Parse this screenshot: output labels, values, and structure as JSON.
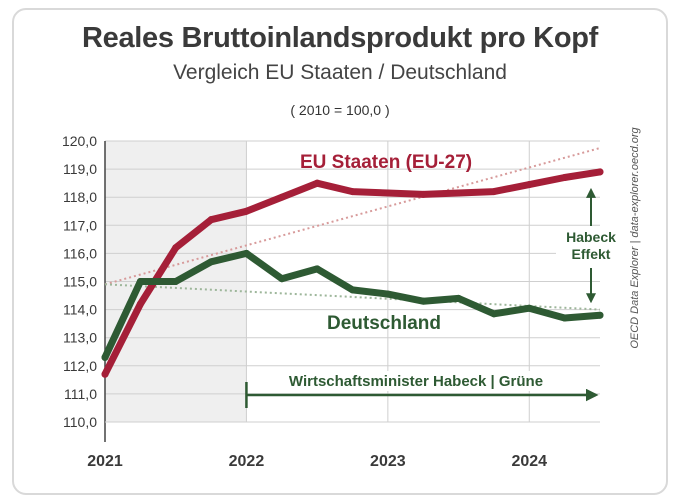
{
  "header": {
    "title": "Reales Bruttoinlandsprodukt pro Kopf",
    "subtitle": "Vergleich EU Staaten / Deutschland",
    "baseline_note": "( 2010 = 100,0 )"
  },
  "source": "OECD Data Explorer | data-explorer.oecd.org",
  "colors": {
    "eu": "#a51f38",
    "de": "#2e5a33",
    "eu_trend": "#d79a9a",
    "de_trend": "#9db69a",
    "shade": "#efefef",
    "grid": "#cfcfcf",
    "axis_text": "#3a3a3a"
  },
  "chart_data": {
    "type": "line",
    "title": "Reales Bruttoinlandsprodukt pro Kopf",
    "xlabel": "",
    "ylabel": "",
    "xlim": [
      2021.0,
      2024.5
    ],
    "ylim": [
      110.0,
      120.0
    ],
    "x_ticks": [
      2021,
      2022,
      2023,
      2024
    ],
    "x_tick_labels": [
      "2021",
      "2022",
      "2023",
      "2024"
    ],
    "y_ticks": [
      110,
      111,
      112,
      113,
      114,
      115,
      116,
      117,
      118,
      119,
      120
    ],
    "y_tick_labels": [
      "110,0",
      "111,0",
      "112,0",
      "113,0",
      "114,0",
      "115,0",
      "116,0",
      "117,0",
      "118,0",
      "119,0",
      "120,0"
    ],
    "shaded_range": [
      2021.0,
      2022.0
    ],
    "series": [
      {
        "name": "EU Staaten (EU-27)",
        "key": "eu",
        "x": [
          2021.0,
          2021.25,
          2021.5,
          2021.75,
          2022.0,
          2022.25,
          2022.5,
          2022.75,
          2023.0,
          2023.25,
          2023.5,
          2023.75,
          2024.0,
          2024.25,
          2024.5
        ],
        "values": [
          111.7,
          114.2,
          116.2,
          117.2,
          117.5,
          118.0,
          118.5,
          118.2,
          118.15,
          118.1,
          118.15,
          118.2,
          118.45,
          118.7,
          118.9
        ]
      },
      {
        "name": "Deutschland",
        "key": "de",
        "x": [
          2021.0,
          2021.25,
          2021.5,
          2021.75,
          2022.0,
          2022.25,
          2022.5,
          2022.75,
          2023.0,
          2023.25,
          2023.5,
          2023.75,
          2024.0,
          2024.25,
          2024.5
        ],
        "values": [
          112.3,
          115.0,
          115.0,
          115.7,
          116.0,
          115.1,
          115.45,
          114.7,
          114.55,
          114.3,
          114.4,
          113.85,
          114.05,
          113.7,
          113.8
        ]
      }
    ],
    "trendlines": [
      {
        "name": "EU trend",
        "key": "eu_trend",
        "x": [
          2021.0,
          2024.5
        ],
        "values": [
          114.9,
          119.75
        ]
      },
      {
        "name": "DE trend",
        "key": "de_trend",
        "x": [
          2021.0,
          2024.5
        ],
        "values": [
          114.9,
          114.0
        ]
      }
    ],
    "annotations": {
      "eu_label": "EU Staaten (EU-27)",
      "de_label": "Deutschland",
      "effect_line1": "Habeck",
      "effect_line2": "Effekt",
      "period_label": "Wirtschaftsminister Habeck | Grüne",
      "period_range": [
        2022.0,
        2024.5
      ]
    }
  }
}
